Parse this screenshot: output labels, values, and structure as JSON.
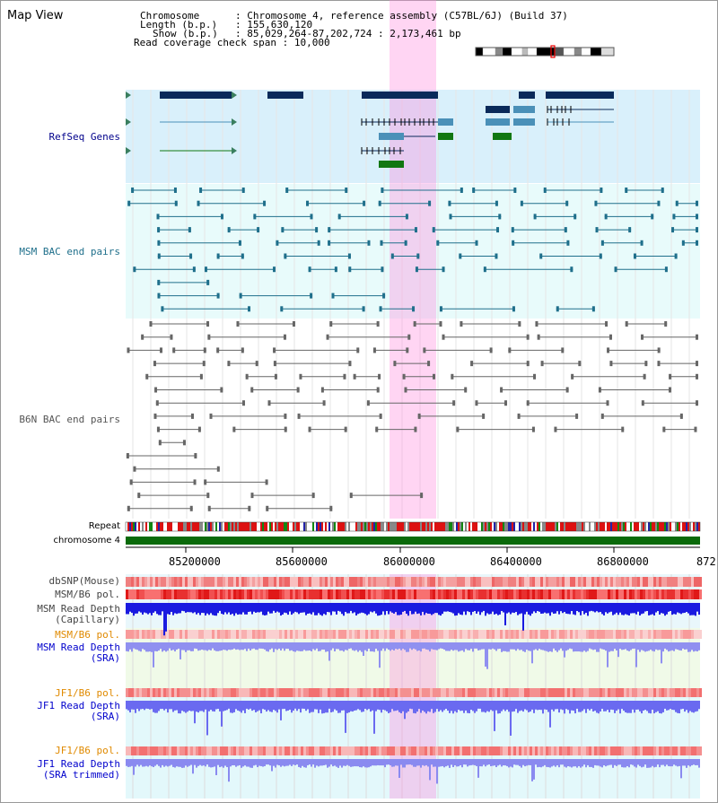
{
  "app": {
    "title": "Map View"
  },
  "header": {
    "lines": [
      {
        "key": "Chromosome",
        "value": "Chromosome 4, reference assembly (C57BL/6J) (Build 37)"
      },
      {
        "key": "Length (b.p.)",
        "value": "155,630,120"
      },
      {
        "key": "Show (b.p.)",
        "value": "85,029,264-87,202,724 : 2,173,461 bp"
      },
      {
        "key": "Read coverage check span",
        "value": "10,000"
      }
    ]
  },
  "tracks": {
    "refseq": {
      "label": "RefSeq Genes",
      "color": "#00008b"
    },
    "msm_bac": {
      "label": "MSM BAC end pairs",
      "color": "#1f6f8b"
    },
    "b6n_bac": {
      "label": "B6N BAC end pairs",
      "color": "#555555"
    },
    "repeat": {
      "label": "Repeat"
    },
    "chromosome": {
      "label": "chromosome 4"
    },
    "dbsnp": {
      "label": "dbSNP(Mouse)"
    },
    "msm_pol": {
      "label": "MSM/B6 pol."
    },
    "msm_cap": {
      "label": "MSM Read Depth",
      "sub": "(Capillary)"
    },
    "msm_pol2": {
      "label": "MSM/B6 pol.",
      "color": "#e08a00"
    },
    "msm_sra": {
      "label": "MSM Read Depth",
      "sub": "(SRA)",
      "color": "#0000cc"
    },
    "jf1_pol": {
      "label": "JF1/B6 pol.",
      "color": "#e08a00"
    },
    "jf1_sra": {
      "label": "JF1 Read Depth",
      "sub": "(SRA)",
      "color": "#0000cc"
    },
    "jf1_pol2": {
      "label": "JF1/B6 pol.",
      "color": "#e08a00"
    },
    "jf1_trim": {
      "label": "JF1 Read Depth",
      "sub": "(SRA trimmed)",
      "color": "#0000cc"
    }
  },
  "axis": {
    "ticks": [
      "85200000",
      "85600000",
      "86000000",
      "86400000",
      "86800000",
      "872"
    ]
  }
}
